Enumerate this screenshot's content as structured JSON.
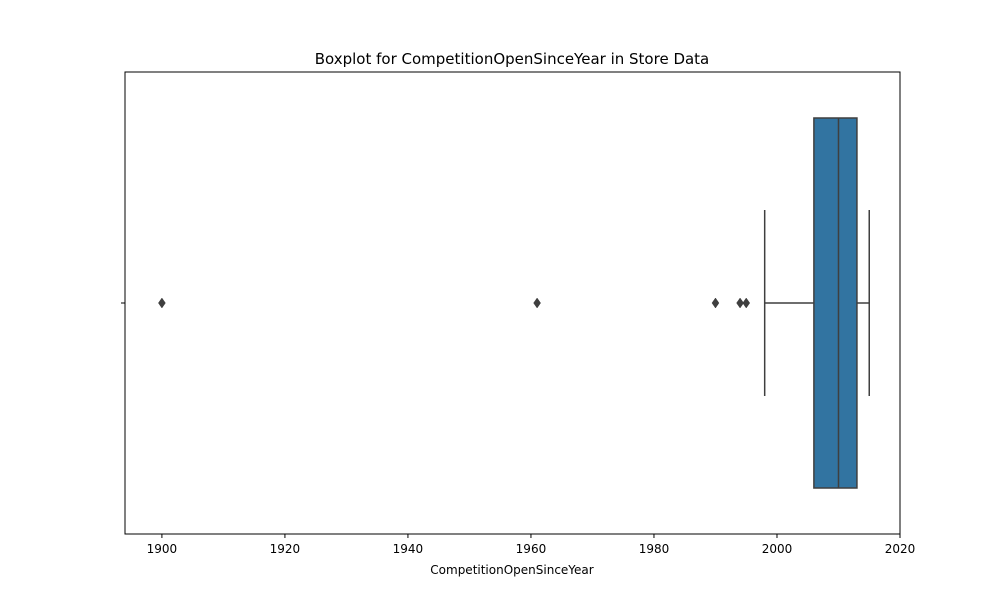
{
  "chart_data": {
    "type": "boxplot",
    "title": "Boxplot for CompetitionOpenSinceYear in Store Data",
    "xlabel": "CompetitionOpenSinceYear",
    "ylabel": "",
    "xlim": [
      1894,
      2020
    ],
    "x_ticks": [
      1900,
      1920,
      1940,
      1960,
      1980,
      2000,
      2020
    ],
    "grid": false,
    "orientation": "horizontal",
    "box": {
      "whisker_low": 1998,
      "q1": 2006,
      "median": 2010,
      "q3": 2013,
      "whisker_high": 2015,
      "outliers": [
        1900,
        1961,
        1990,
        1994,
        1995
      ],
      "color": "#3274a1",
      "line_color": "#3f3f3f"
    }
  }
}
